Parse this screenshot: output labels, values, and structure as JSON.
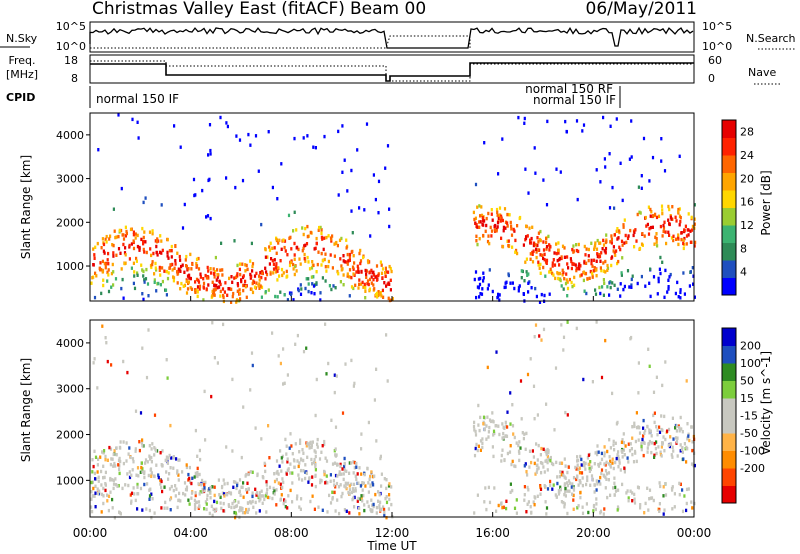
{
  "header": {
    "radar": "Christmas Valley East (fitACF)",
    "beam": "Beam 00",
    "date": "06/May/2011"
  },
  "panels": {
    "nsky": {
      "label": "N.Sky",
      "ticks": [
        "10^5",
        "10^0"
      ],
      "right_label": "N.Search"
    },
    "freq": {
      "label_line1": "Freq.",
      "label_line2": "[MHz]",
      "ticks": [
        "18",
        "8"
      ],
      "right_ticks": [
        "60",
        "0"
      ],
      "right_label": "Nave"
    },
    "cpid": {
      "label": "CPID",
      "entries": [
        "normal 150 IF",
        "normal 150 RF",
        "normal 150 IF"
      ]
    }
  },
  "colors": {
    "power": [
      "#0000ff",
      "#1f4fbf",
      "#2e8b57",
      "#3cb371",
      "#9acd32",
      "#ffd700",
      "#ffa500",
      "#ff6600",
      "#ff2200",
      "#e60000"
    ],
    "velocity": [
      "#e60000",
      "#ff4500",
      "#ff8c00",
      "#ffb347",
      "#c8c8c0",
      "#c8c8c0",
      "#7ccd3c",
      "#2e8b22",
      "#1e4fbf",
      "#0000cd"
    ]
  },
  "chart_data": [
    {
      "type": "heatmap",
      "title": "Power",
      "xlabel": "Time UT",
      "ylabel": "Slant Range [km]",
      "x_ticks": [
        "00:00",
        "04:00",
        "08:00",
        "12:00",
        "16:00",
        "20:00",
        "00:00"
      ],
      "y_ticks": [
        1000,
        2000,
        3000,
        4000
      ],
      "xlim": [
        0,
        24
      ],
      "ylim": [
        200,
        4500
      ],
      "gap": [
        12,
        15.2
      ],
      "colorbar": {
        "label": "Power [dB]",
        "ticks": [
          4,
          8,
          12,
          16,
          20,
          24,
          28
        ],
        "range": [
          0,
          30
        ]
      }
    },
    {
      "type": "heatmap",
      "title": "Velocity",
      "xlabel": "Time UT",
      "ylabel": "Slant Range [km]",
      "x_ticks": [
        "00:00",
        "04:00",
        "08:00",
        "12:00",
        "16:00",
        "20:00",
        "00:00"
      ],
      "y_ticks": [
        1000,
        2000,
        3000,
        4000
      ],
      "xlim": [
        0,
        24
      ],
      "ylim": [
        200,
        4500
      ],
      "gap": [
        12,
        15.2
      ],
      "colorbar": {
        "label": "Velocity [m s^-1]",
        "ticks": [
          200,
          100,
          50,
          15,
          -15,
          -50,
          -100,
          -200
        ]
      }
    }
  ]
}
